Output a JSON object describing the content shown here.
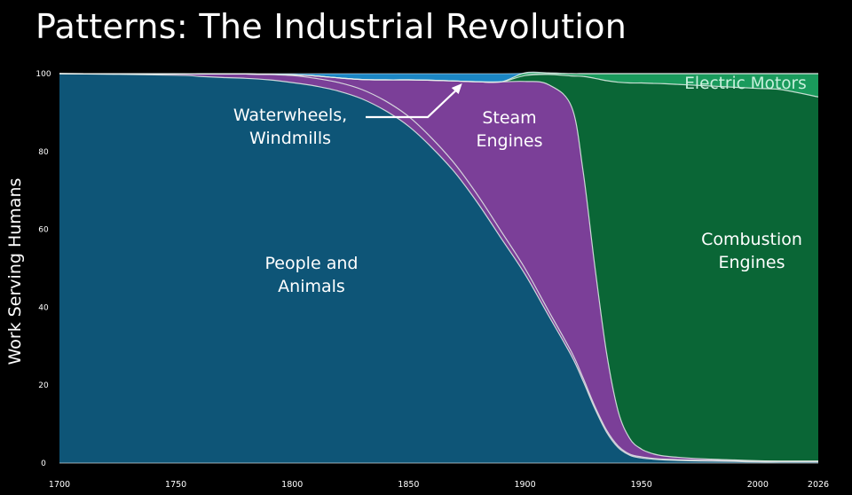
{
  "slide": {
    "title": "Patterns: The Industrial Revolution"
  },
  "chart_data": {
    "type": "area",
    "stacked": true,
    "title": "Patterns: The Industrial Revolution",
    "xlabel": "",
    "ylabel": "Work Serving Humans",
    "xlim": [
      1700,
      2026
    ],
    "ylim": [
      0,
      100
    ],
    "xticks": [
      "1700",
      "1750",
      "1800",
      "1850",
      "1900",
      "1950",
      "2000",
      "2026"
    ],
    "yticks": [
      "0",
      "20",
      "40",
      "60",
      "80",
      "100"
    ],
    "x": [
      1700,
      1750,
      1760,
      1770,
      1780,
      1790,
      1800,
      1810,
      1820,
      1830,
      1840,
      1850,
      1860,
      1870,
      1880,
      1890,
      1900,
      1910,
      1920,
      1925,
      1930,
      1935,
      1940,
      1945,
      1950,
      1955,
      1960,
      1970,
      1980,
      1990,
      2000,
      2010,
      2026
    ],
    "series": [
      {
        "name": "People and Animals",
        "color": "#0e5577",
        "values": [
          100,
          99.6,
          99.3,
          99,
          98.8,
          98.4,
          97.7,
          96.8,
          95.5,
          93.5,
          90.5,
          86.5,
          81,
          74.5,
          66.5,
          57.5,
          48.5,
          38,
          27.5,
          21,
          14,
          8,
          4,
          2,
          1.3,
          1,
          0.8,
          0.6,
          0.5,
          0.4,
          0.3,
          0.3,
          0.3
        ]
      },
      {
        "name": "Waterwheels, Windmills",
        "color": "#7b3f98",
        "values": [
          0,
          0.3,
          0.6,
          0.9,
          1.1,
          1.4,
          1.8,
          2.0,
          2.2,
          2.4,
          2.5,
          2.5,
          2.4,
          2.2,
          2.0,
          1.8,
          1.5,
          1.2,
          1.0,
          0.8,
          0.6,
          0.5,
          0.4,
          0.3,
          0.3,
          0.2,
          0.2,
          0.2,
          0.2,
          0.2,
          0.2,
          0.2,
          0.2
        ]
      },
      {
        "name": "Steam Engines",
        "color": "#7b3f98",
        "values": [
          0,
          0,
          0,
          0,
          0,
          0,
          0.2,
          0.6,
          1.2,
          2.6,
          5.4,
          9.4,
          14.9,
          21.4,
          29.4,
          38.6,
          48,
          58,
          63,
          53,
          36,
          20,
          9,
          4,
          2,
          1.2,
          0.8,
          0.5,
          0.3,
          0.2,
          0.1,
          0,
          0
        ]
      },
      {
        "name": "Combustion Engines",
        "color": "#0a6636",
        "values": [
          0,
          0,
          0,
          0,
          0,
          0,
          0,
          0,
          0,
          0,
          0,
          0,
          0,
          0,
          0,
          0,
          1.5,
          2.6,
          7.9,
          24.5,
          48.2,
          69.7,
          84.4,
          91.3,
          94,
          95.1,
          95.6,
          95.8,
          95.8,
          95.7,
          95.6,
          95.4,
          93.5
        ]
      },
      {
        "name": "Electric Motors",
        "color": "#1a9a5c",
        "values": [
          0,
          0,
          0,
          0,
          0,
          0,
          0,
          0,
          0,
          0,
          0,
          0,
          0,
          0,
          0,
          0,
          0.7,
          0.4,
          0.6,
          0.7,
          1.2,
          1.8,
          2.2,
          2.4,
          2.4,
          2.5,
          2.6,
          2.9,
          3.2,
          3.5,
          3.8,
          4.1,
          6
        ]
      },
      {
        "name": "",
        "color": "#1b86c4",
        "values": [
          0,
          0.1,
          0.1,
          0.1,
          0.1,
          0.2,
          0.3,
          0.6,
          1.1,
          1.5,
          1.6,
          1.6,
          1.7,
          1.9,
          2.1,
          2.1,
          0,
          0,
          0,
          0,
          0,
          0,
          0,
          0,
          0,
          0,
          0,
          0,
          0,
          0,
          0,
          0,
          0
        ]
      }
    ],
    "annotations": [
      {
        "text": "Waterwheels,\nWindmills",
        "arrow_to": [
          1873,
          97.5
        ]
      },
      {
        "text": "Steam\nEngines"
      },
      {
        "text": "People and\nAnimals"
      },
      {
        "text": "Combustion\nEngines"
      },
      {
        "text": "Electric Motors"
      }
    ],
    "grid": false,
    "legend": "none"
  }
}
